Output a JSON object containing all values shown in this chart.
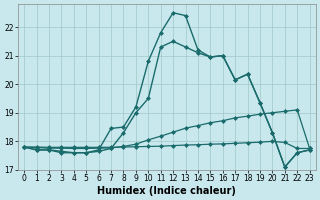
{
  "xlabel": "Humidex (Indice chaleur)",
  "bg_color": "#c8e8ee",
  "grid_color": "#a0c8c8",
  "line_color": "#1a6b6b",
  "xlim": [
    -0.5,
    23.5
  ],
  "ylim": [
    17.0,
    22.8
  ],
  "yticks": [
    17,
    18,
    19,
    20,
    21,
    22
  ],
  "xticks": [
    0,
    1,
    2,
    3,
    4,
    5,
    6,
    7,
    8,
    9,
    10,
    11,
    12,
    13,
    14,
    15,
    16,
    17,
    18,
    19,
    20,
    21,
    22,
    23
  ],
  "series": [
    [
      17.8,
      17.7,
      17.7,
      17.6,
      17.6,
      17.6,
      17.7,
      18.45,
      18.5,
      19.2,
      20.8,
      21.8,
      22.5,
      22.4,
      21.2,
      20.95,
      21.0,
      20.15,
      20.35,
      19.35,
      18.3,
      17.1,
      17.6,
      17.7
    ],
    [
      17.8,
      17.7,
      17.7,
      17.65,
      17.6,
      17.6,
      17.65,
      17.75,
      18.3,
      19.0,
      19.5,
      21.3,
      21.5,
      21.3,
      21.1,
      20.95,
      21.0,
      20.15,
      20.35,
      19.35,
      18.3,
      17.1,
      17.6,
      17.7
    ],
    [
      17.8,
      17.78,
      17.76,
      17.76,
      17.75,
      17.75,
      17.76,
      17.77,
      17.82,
      17.9,
      18.05,
      18.18,
      18.32,
      18.46,
      18.55,
      18.65,
      18.72,
      18.82,
      18.88,
      18.95,
      19.0,
      19.05,
      19.1,
      17.75
    ],
    [
      17.8,
      17.8,
      17.79,
      17.79,
      17.79,
      17.79,
      17.79,
      17.79,
      17.8,
      17.81,
      17.82,
      17.83,
      17.85,
      17.87,
      17.88,
      17.9,
      17.91,
      17.93,
      17.95,
      17.97,
      18.0,
      17.96,
      17.75,
      17.75
    ]
  ]
}
